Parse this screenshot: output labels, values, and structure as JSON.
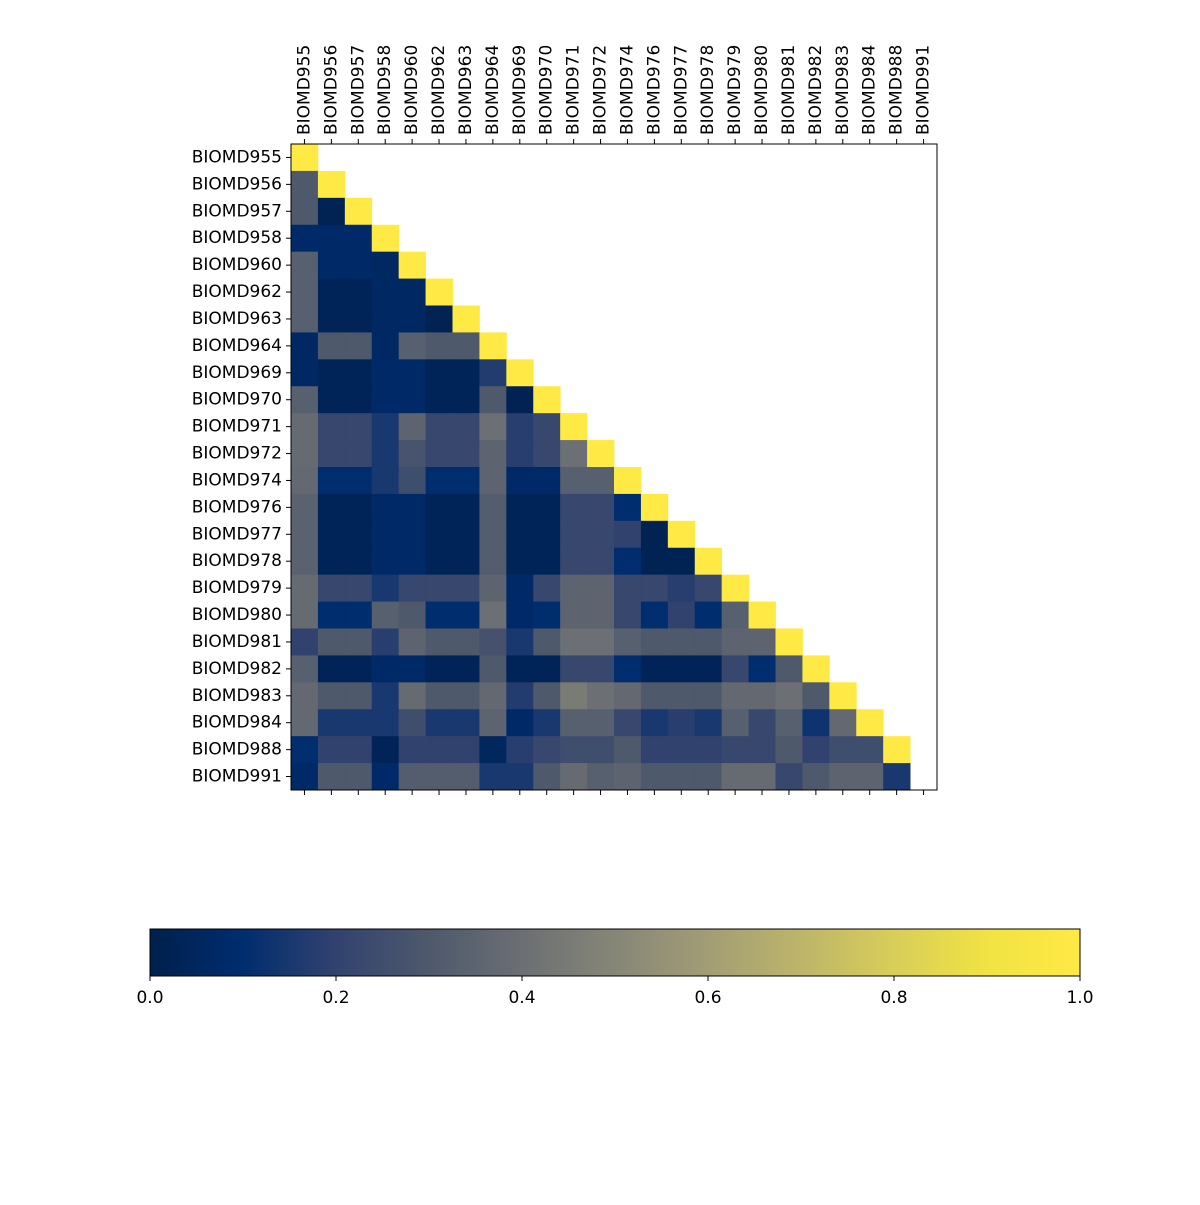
{
  "chart_data": {
    "type": "heatmap",
    "title": "",
    "xlabel": "",
    "ylabel": "",
    "x_tick_position": "top",
    "grid": false,
    "colormap": "cividis",
    "vmin": 0.0,
    "vmax": 1.0,
    "colorbar": {
      "orientation": "horizontal",
      "placement": "bottom",
      "ticks": [
        0.0,
        0.2,
        0.4,
        0.6,
        0.8,
        1.0
      ],
      "tick_labels": [
        "0.0",
        "0.2",
        "0.4",
        "0.6",
        "0.8",
        "1.0"
      ]
    },
    "row_labels": [
      "BIOMD955",
      "BIOMD956",
      "BIOMD957",
      "BIOMD958",
      "BIOMD960",
      "BIOMD962",
      "BIOMD963",
      "BIOMD964",
      "BIOMD969",
      "BIOMD970",
      "BIOMD971",
      "BIOMD972",
      "BIOMD974",
      "BIOMD976",
      "BIOMD977",
      "BIOMD978",
      "BIOMD979",
      "BIOMD980",
      "BIOMD981",
      "BIOMD982",
      "BIOMD983",
      "BIOMD984",
      "BIOMD988",
      "BIOMD991"
    ],
    "col_labels": [
      "BIOMD955",
      "BIOMD956",
      "BIOMD957",
      "BIOMD958",
      "BIOMD960",
      "BIOMD962",
      "BIOMD963",
      "BIOMD964",
      "BIOMD969",
      "BIOMD970",
      "BIOMD971",
      "BIOMD972",
      "BIOMD974",
      "BIOMD976",
      "BIOMD977",
      "BIOMD978",
      "BIOMD979",
      "BIOMD980",
      "BIOMD981",
      "BIOMD982",
      "BIOMD983",
      "BIOMD984",
      "BIOMD988",
      "BIOMD991"
    ],
    "values": [
      [
        1.0
      ],
      [
        0.3,
        1.0
      ],
      [
        0.3,
        0.02,
        1.0
      ],
      [
        0.08,
        0.08,
        0.08,
        1.0
      ],
      [
        0.33,
        0.08,
        0.08,
        0.06,
        1.0
      ],
      [
        0.33,
        0.03,
        0.03,
        0.07,
        0.07,
        1.0
      ],
      [
        0.33,
        0.03,
        0.03,
        0.07,
        0.07,
        0.02,
        1.0
      ],
      [
        0.07,
        0.3,
        0.3,
        0.07,
        0.33,
        0.3,
        0.3,
        1.0
      ],
      [
        0.07,
        0.03,
        0.03,
        0.08,
        0.08,
        0.03,
        0.03,
        0.17,
        1.0
      ],
      [
        0.33,
        0.03,
        0.03,
        0.08,
        0.08,
        0.03,
        0.03,
        0.3,
        0.02,
        1.0
      ],
      [
        0.38,
        0.22,
        0.22,
        0.15,
        0.35,
        0.22,
        0.22,
        0.4,
        0.18,
        0.22,
        1.0
      ],
      [
        0.38,
        0.22,
        0.22,
        0.15,
        0.28,
        0.22,
        0.22,
        0.35,
        0.18,
        0.22,
        0.4,
        1.0
      ],
      [
        0.37,
        0.1,
        0.1,
        0.15,
        0.25,
        0.1,
        0.1,
        0.35,
        0.08,
        0.08,
        0.33,
        0.33,
        1.0
      ],
      [
        0.34,
        0.03,
        0.03,
        0.08,
        0.08,
        0.03,
        0.03,
        0.32,
        0.03,
        0.03,
        0.22,
        0.22,
        0.1,
        1.0
      ],
      [
        0.34,
        0.03,
        0.03,
        0.08,
        0.08,
        0.03,
        0.03,
        0.32,
        0.03,
        0.03,
        0.22,
        0.22,
        0.2,
        0.02,
        1.0
      ],
      [
        0.34,
        0.03,
        0.03,
        0.08,
        0.08,
        0.03,
        0.03,
        0.32,
        0.03,
        0.03,
        0.22,
        0.22,
        0.1,
        0.02,
        0.02,
        1.0
      ],
      [
        0.38,
        0.22,
        0.22,
        0.15,
        0.22,
        0.22,
        0.22,
        0.35,
        0.08,
        0.22,
        0.35,
        0.35,
        0.22,
        0.22,
        0.18,
        0.22,
        1.0
      ],
      [
        0.38,
        0.1,
        0.1,
        0.33,
        0.3,
        0.1,
        0.1,
        0.4,
        0.08,
        0.1,
        0.35,
        0.35,
        0.22,
        0.1,
        0.2,
        0.1,
        0.33,
        1.0
      ],
      [
        0.2,
        0.3,
        0.3,
        0.18,
        0.35,
        0.3,
        0.3,
        0.27,
        0.15,
        0.3,
        0.4,
        0.4,
        0.33,
        0.3,
        0.3,
        0.3,
        0.35,
        0.35,
        1.0
      ],
      [
        0.33,
        0.03,
        0.03,
        0.08,
        0.08,
        0.03,
        0.03,
        0.3,
        0.03,
        0.03,
        0.22,
        0.22,
        0.1,
        0.03,
        0.03,
        0.03,
        0.22,
        0.1,
        0.3,
        1.0
      ],
      [
        0.37,
        0.3,
        0.3,
        0.15,
        0.38,
        0.3,
        0.3,
        0.37,
        0.17,
        0.3,
        0.45,
        0.4,
        0.37,
        0.3,
        0.3,
        0.3,
        0.37,
        0.37,
        0.4,
        0.3,
        1.0
      ],
      [
        0.37,
        0.15,
        0.15,
        0.15,
        0.25,
        0.15,
        0.15,
        0.35,
        0.08,
        0.15,
        0.33,
        0.33,
        0.22,
        0.15,
        0.18,
        0.15,
        0.33,
        0.22,
        0.33,
        0.13,
        0.37,
        1.0
      ],
      [
        0.1,
        0.2,
        0.2,
        0.03,
        0.2,
        0.2,
        0.2,
        0.05,
        0.18,
        0.22,
        0.25,
        0.25,
        0.3,
        0.2,
        0.2,
        0.2,
        0.22,
        0.22,
        0.3,
        0.2,
        0.25,
        0.25,
        1.0
      ],
      [
        0.08,
        0.3,
        0.3,
        0.08,
        0.32,
        0.32,
        0.32,
        0.15,
        0.15,
        0.3,
        0.38,
        0.33,
        0.35,
        0.3,
        0.3,
        0.3,
        0.38,
        0.38,
        0.22,
        0.3,
        0.35,
        0.35,
        0.15
      ]
    ]
  }
}
